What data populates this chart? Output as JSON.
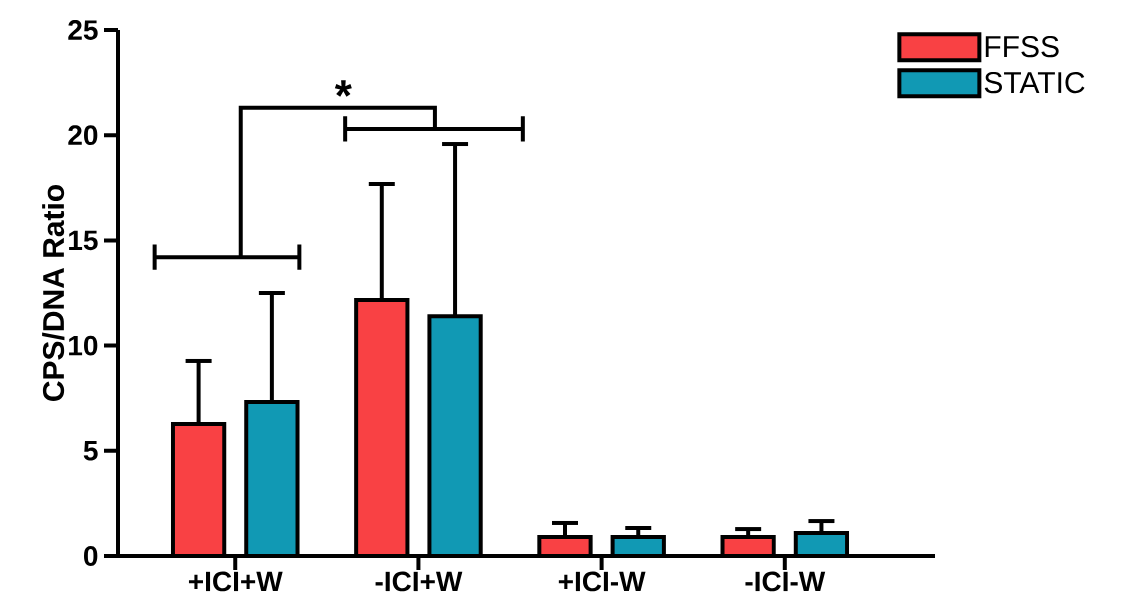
{
  "chart_data": {
    "type": "bar",
    "ylabel": "CPS/DNA Ratio",
    "categories": [
      "+ICI+W",
      "-ICI+W",
      "+ICI-W",
      "-ICI-W"
    ],
    "series": [
      {
        "name": "FFSS",
        "color": "#f94144",
        "values": [
          6.27,
          12.17,
          0.9,
          0.9
        ],
        "errors": [
          [
            6.27,
            9.27
          ],
          [
            12.17,
            17.68
          ],
          [
            0.9,
            1.57
          ],
          [
            0.9,
            1.28
          ]
        ]
      },
      {
        "name": "STATIC",
        "color": "#1199b4",
        "values": [
          7.32,
          11.4,
          0.9,
          1.09
        ],
        "errors": [
          [
            7.32,
            12.5
          ],
          [
            11.4,
            19.58
          ],
          [
            0.9,
            1.33
          ],
          [
            1.09,
            1.66
          ]
        ]
      }
    ],
    "ylim": [
      0,
      25
    ],
    "yticks": [
      0,
      5,
      10,
      15,
      20,
      25
    ],
    "legend": "top right",
    "grid": false,
    "annotations": [
      "*"
    ]
  }
}
